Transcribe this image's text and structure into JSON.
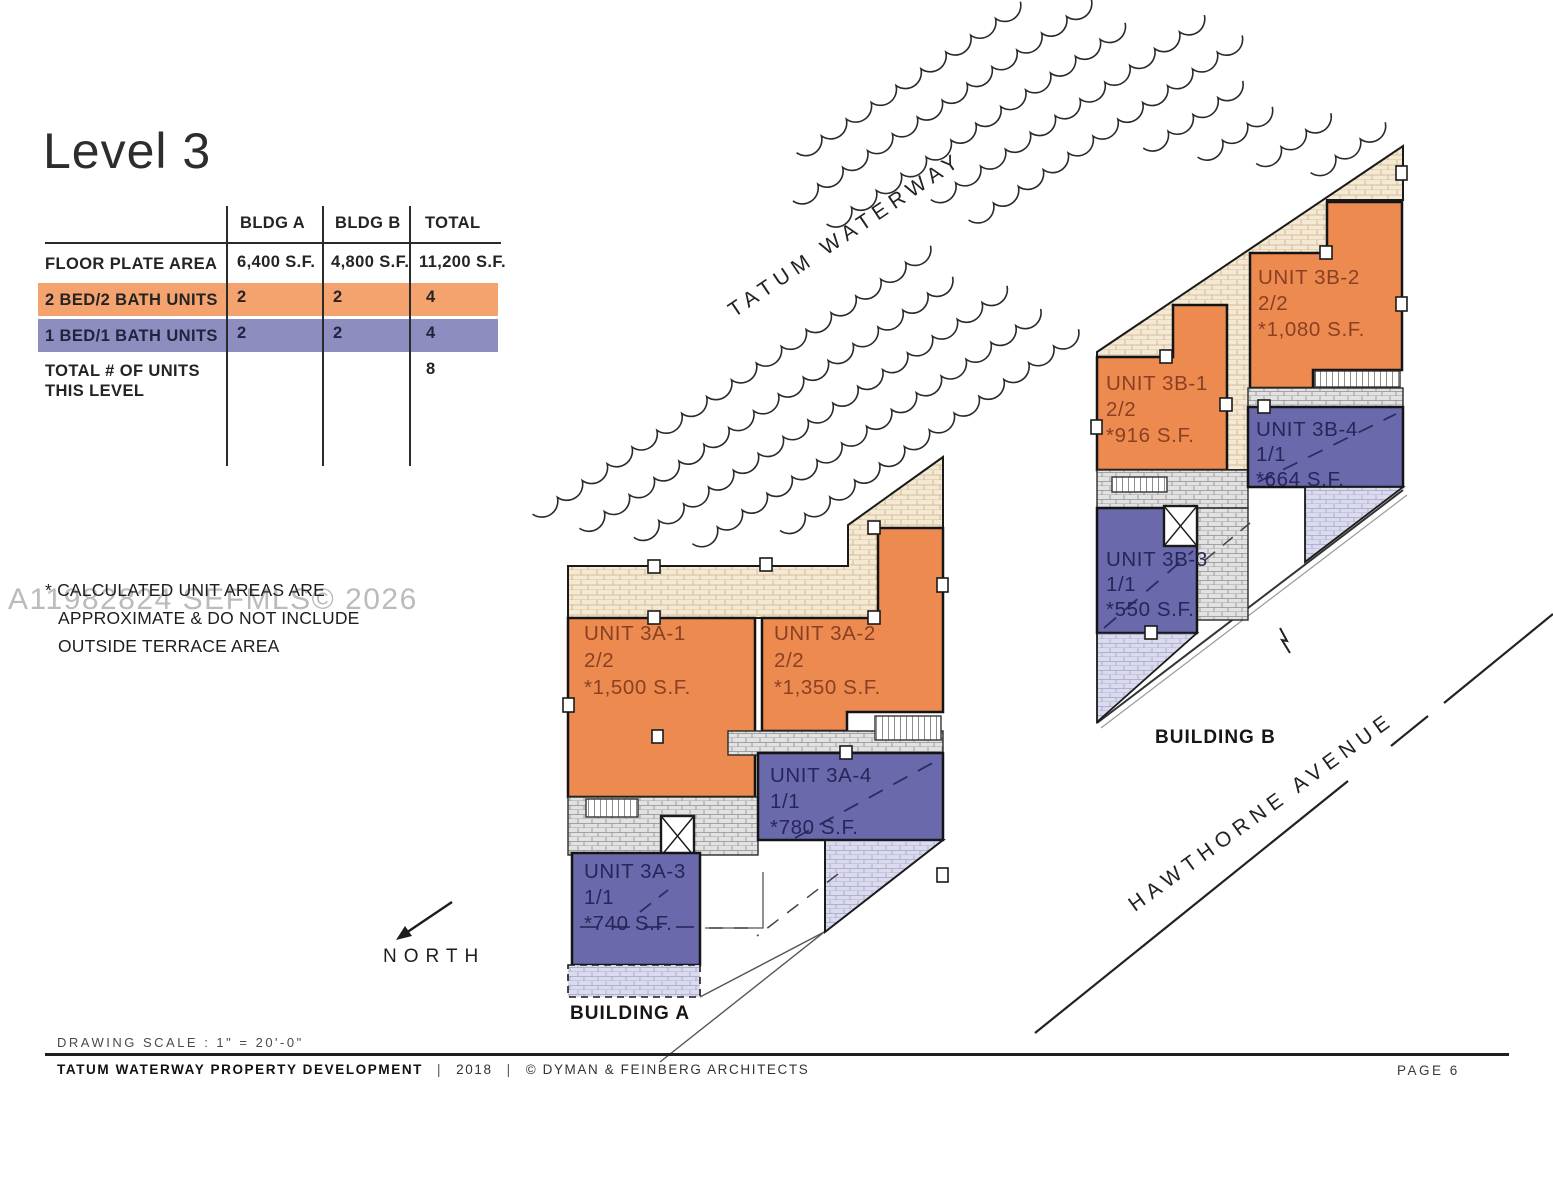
{
  "page": {
    "title": "Level 3",
    "watermark": "A11982824  SEFMLS© 2026"
  },
  "table": {
    "columns": [
      "BLDG A",
      "BLDG B",
      "TOTAL"
    ],
    "rows": [
      {
        "label": "FLOOR PLATE AREA",
        "values": [
          "6,400 S.F.",
          "4,800 S.F.",
          "11,200 S.F."
        ]
      },
      {
        "label": "2 BED/2 BATH UNITS",
        "values": [
          "2",
          "2",
          "4"
        ]
      },
      {
        "label": "1 BED/1 BATH UNITS",
        "values": [
          "2",
          "2",
          "4"
        ]
      },
      {
        "label_line1": "TOTAL # OF UNITS",
        "label_line2": "THIS LEVEL",
        "values": [
          "",
          "",
          "8"
        ]
      }
    ]
  },
  "note": {
    "lines": [
      "* CALCULATED UNIT AREAS ARE",
      "APPROXIMATE & DO NOT INCLUDE",
      "OUTSIDE TERRACE AREA"
    ]
  },
  "plan": {
    "streets": {
      "waterway": "TATUM WATERWAY",
      "avenue": "HAWTHORNE AVENUE"
    },
    "north": "NORTH",
    "buildings": [
      {
        "label": "BUILDING A"
      },
      {
        "label": "BUILDING B"
      }
    ],
    "units": [
      {
        "name": "UNIT 3A-1",
        "beds": "2/2",
        "area": "*1,500 S.F."
      },
      {
        "name": "UNIT 3A-2",
        "beds": "2/2",
        "area": "*1,350 S.F."
      },
      {
        "name": "UNIT 3A-4",
        "beds": "1/1",
        "area": "*780 S.F."
      },
      {
        "name": "UNIT 3A-3",
        "beds": "1/1",
        "area": "*740 S.F."
      },
      {
        "name": "UNIT 3B-1",
        "beds": "2/2",
        "area": "*916 S.F."
      },
      {
        "name": "UNIT 3B-2",
        "beds": "2/2",
        "area": "*1,080 S.F."
      },
      {
        "name": "UNIT 3B-4",
        "beds": "1/1",
        "area": "*664 S.F."
      },
      {
        "name": "UNIT 3B-3",
        "beds": "1/1",
        "area": "*550 S.F."
      }
    ],
    "colors": {
      "unit_2bed": "#ec8a50",
      "unit_1bed": "#6969ab",
      "row_2bed": "#f4a26e",
      "row_1bed": "#8d8dbf",
      "unit_2bed_text": "#8a4023",
      "unit_1bed_text": "#26265a"
    }
  },
  "footer": {
    "scale": "DRAWING SCALE :  1\" = 20'-0\"",
    "project": "TATUM WATERWAY PROPERTY DEVELOPMENT",
    "year": "2018",
    "credit": "© DYMAN & FEINBERG ARCHITECTS",
    "separator": "|",
    "page": "PAGE 6"
  }
}
